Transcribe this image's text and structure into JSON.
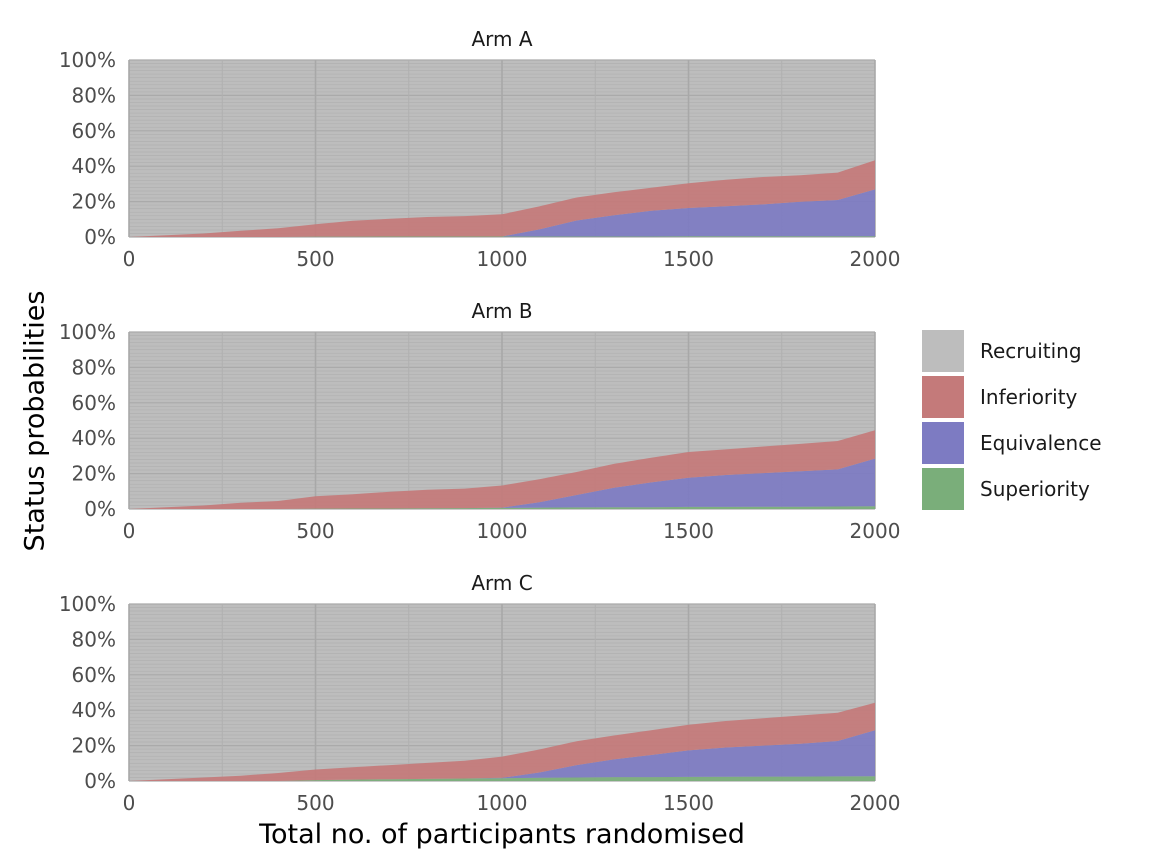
{
  "chart_data": {
    "type": "area",
    "stacked": true,
    "ylabel": "Status probabilities",
    "xlabel": "Total no. of participants randomised",
    "xlim": [
      0,
      2000
    ],
    "ylim": [
      0,
      1
    ],
    "x_ticks": [
      0,
      500,
      1000,
      1500,
      2000
    ],
    "y_ticks": [
      0,
      0.2,
      0.4,
      0.6,
      0.8,
      1.0
    ],
    "y_tick_labels": [
      "0%",
      "20%",
      "40%",
      "60%",
      "80%",
      "100%"
    ],
    "grid": true,
    "legend_position": "right",
    "legend": [
      {
        "name": "Recruiting",
        "color": "#bdbdbd"
      },
      {
        "name": "Inferiority",
        "color": "#c47a7a"
      },
      {
        "name": "Equivalence",
        "color": "#7d7bc2"
      },
      {
        "name": "Superiority",
        "color": "#7aae7a"
      }
    ],
    "x": [
      0,
      100,
      200,
      300,
      400,
      500,
      600,
      700,
      800,
      900,
      1000,
      1100,
      1200,
      1300,
      1400,
      1500,
      1600,
      1700,
      1800,
      1900,
      2000
    ],
    "panels": [
      {
        "title": "Arm A",
        "series": [
          {
            "name": "Superiority",
            "values": [
              0,
              0,
              0,
              0,
              0,
              0.002,
              0.002,
              0.003,
              0.003,
              0.003,
              0.003,
              0.003,
              0.003,
              0.003,
              0.003,
              0.004,
              0.004,
              0.004,
              0.004,
              0.004,
              0.004
            ]
          },
          {
            "name": "Equivalence",
            "values": [
              0,
              0,
              0,
              0,
              0,
              0,
              0,
              0,
              0,
              0,
              0,
              0.04,
              0.09,
              0.12,
              0.145,
              0.16,
              0.17,
              0.18,
              0.195,
              0.205,
              0.265
            ]
          },
          {
            "name": "Inferiority",
            "values": [
              0,
              0.01,
              0.02,
              0.035,
              0.05,
              0.07,
              0.09,
              0.1,
              0.11,
              0.115,
              0.125,
              0.13,
              0.13,
              0.13,
              0.13,
              0.14,
              0.15,
              0.155,
              0.15,
              0.155,
              0.165
            ]
          }
        ]
      },
      {
        "title": "Arm B",
        "series": [
          {
            "name": "Superiority",
            "values": [
              0,
              0,
              0,
              0,
              0,
              0.002,
              0.003,
              0.003,
              0.004,
              0.005,
              0.006,
              0.008,
              0.009,
              0.01,
              0.01,
              0.012,
              0.012,
              0.013,
              0.013,
              0.014,
              0.015
            ]
          },
          {
            "name": "Equivalence",
            "values": [
              0,
              0,
              0,
              0,
              0,
              0,
              0,
              0,
              0,
              0,
              0.002,
              0.03,
              0.07,
              0.11,
              0.14,
              0.165,
              0.18,
              0.19,
              0.2,
              0.21,
              0.27
            ]
          },
          {
            "name": "Inferiority",
            "values": [
              0,
              0.01,
              0.02,
              0.035,
              0.045,
              0.07,
              0.08,
              0.095,
              0.105,
              0.11,
              0.125,
              0.13,
              0.13,
              0.135,
              0.14,
              0.145,
              0.145,
              0.15,
              0.155,
              0.16,
              0.16
            ]
          }
        ]
      },
      {
        "title": "Arm C",
        "series": [
          {
            "name": "Superiority",
            "values": [
              0,
              0,
              0,
              0,
              0,
              0.005,
              0.008,
              0.01,
              0.012,
              0.014,
              0.016,
              0.018,
              0.02,
              0.022,
              0.022,
              0.023,
              0.024,
              0.025,
              0.025,
              0.026,
              0.027
            ]
          },
          {
            "name": "Equivalence",
            "values": [
              0,
              0,
              0,
              0,
              0,
              0,
              0,
              0,
              0,
              0,
              0.002,
              0.03,
              0.07,
              0.1,
              0.125,
              0.15,
              0.165,
              0.175,
              0.185,
              0.2,
              0.26
            ]
          },
          {
            "name": "Inferiority",
            "values": [
              0,
              0.01,
              0.02,
              0.03,
              0.045,
              0.06,
              0.07,
              0.08,
              0.09,
              0.1,
              0.12,
              0.13,
              0.135,
              0.135,
              0.14,
              0.145,
              0.15,
              0.155,
              0.16,
              0.16,
              0.155
            ]
          }
        ]
      }
    ]
  }
}
